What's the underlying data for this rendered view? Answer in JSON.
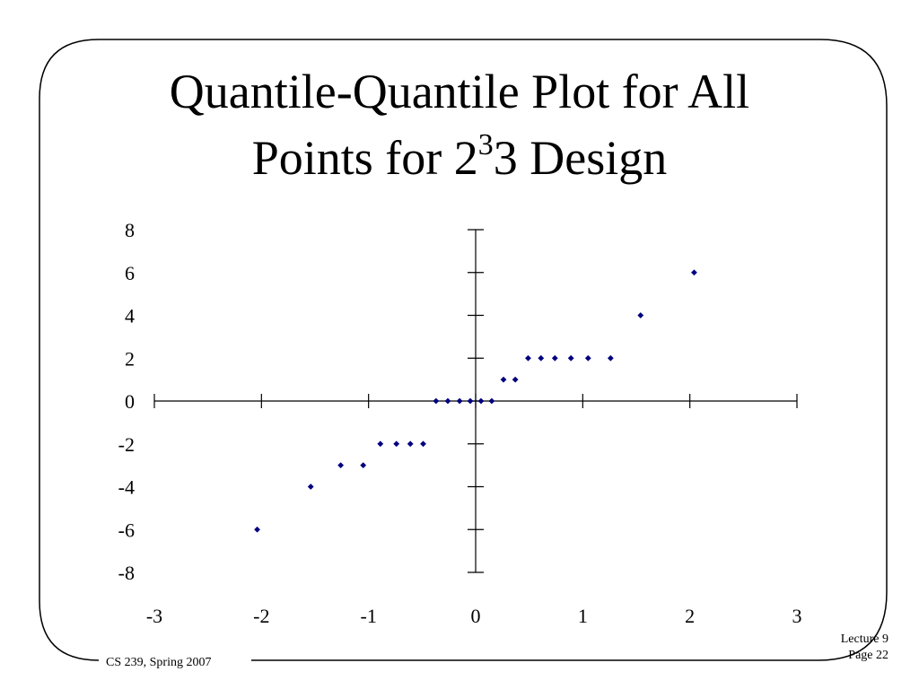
{
  "slide": {
    "title_line_1": "Quantile-Quantile Plot for All",
    "title_line_2_prefix": "Points for 2",
    "title_line_2_superscript": "3",
    "title_line_2_suffix": "3 Design",
    "footer_course": "CS 239, Spring 2007",
    "footer_lecture": "Lecture 9",
    "footer_page": "Page 22"
  },
  "chart_data": {
    "type": "scatter",
    "title": "",
    "xlabel": "",
    "ylabel": "",
    "xlim": [
      -3,
      3
    ],
    "ylim": [
      -8,
      8
    ],
    "x_ticks": [
      "-3",
      "-2",
      "-1",
      "0",
      "1",
      "2",
      "3"
    ],
    "y_ticks": [
      "-8",
      "-6",
      "-4",
      "-2",
      "0",
      "2",
      "4",
      "6",
      "8"
    ],
    "grid": false,
    "legend": "none",
    "marker": "diamond",
    "marker_color": "#000080",
    "series": [
      {
        "x": [
          -2.04,
          -1.54,
          -1.26,
          -1.05,
          -0.89,
          -0.74,
          -0.61,
          -0.49,
          -0.37,
          -0.26,
          -0.15,
          -0.05,
          0.05,
          0.15,
          0.26,
          0.37,
          0.49,
          0.61,
          0.74,
          0.89,
          1.05,
          1.26,
          1.54,
          2.04
        ],
        "y": [
          -6,
          -4,
          -3,
          -3,
          -2,
          -2,
          -2,
          -2,
          0,
          0,
          0,
          0,
          0,
          0,
          1,
          1,
          2,
          2,
          2,
          2,
          2,
          2,
          4,
          6
        ]
      }
    ]
  }
}
